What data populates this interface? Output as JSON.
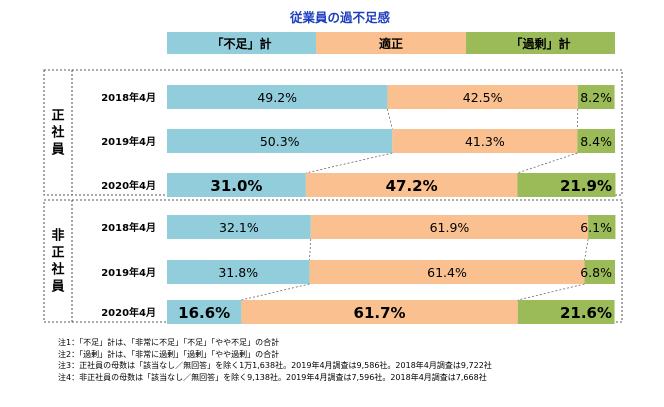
{
  "chart_data": {
    "type": "bar",
    "stacked": true,
    "orientation": "horizontal",
    "title": "従業員の過不足感",
    "categories": [
      "2018年4月",
      "2019年4月",
      "2020年4月",
      "2018年4月",
      "2019年4月",
      "2020年4月"
    ],
    "groups": [
      {
        "label": "正社員",
        "rows": [
          0,
          1,
          2
        ]
      },
      {
        "label": "非正社員",
        "rows": [
          3,
          4,
          5
        ]
      }
    ],
    "series": [
      {
        "name": "「不足」計",
        "color": "#92CDDC",
        "values": [
          49.2,
          50.3,
          31.0,
          32.1,
          31.8,
          16.6
        ]
      },
      {
        "name": "適正",
        "color": "#FAC090",
        "values": [
          42.5,
          41.3,
          47.2,
          61.9,
          61.4,
          61.7
        ]
      },
      {
        "name": "「過剰」計",
        "color": "#9BBB59",
        "values": [
          8.2,
          8.4,
          21.9,
          6.1,
          6.8,
          21.6
        ]
      }
    ],
    "labels": [
      [
        "49.2%",
        "42.5%",
        "8.2%"
      ],
      [
        "50.3%",
        "41.3%",
        "8.4%"
      ],
      [
        "31.0%",
        "47.2%",
        "21.9%"
      ],
      [
        "32.1%",
        "61.9%",
        "6.1%"
      ],
      [
        "31.8%",
        "61.4%",
        "6.8%"
      ],
      [
        "16.6%",
        "61.7%",
        "21.6%"
      ]
    ],
    "highlight_rows": [
      2,
      5
    ],
    "xlim": [
      0,
      100
    ]
  },
  "notes": [
    "注1：「不足」計は、「非常に不足」「不足」「やや不足」の合計",
    "注2：「過剰」計は、「非常に過剰」「過剰」「やや過剰」の合計",
    "注3：正社員の母数は「該当なし／無回答」を除く1万1,638社。2019年4月調査は9,586社。2018年4月調査は9,722社",
    "注4：非正社員の母数は「該当なし／無回答」を除く9,138社。2019年4月調査は7,596社。2018年4月調査は7,668社"
  ]
}
